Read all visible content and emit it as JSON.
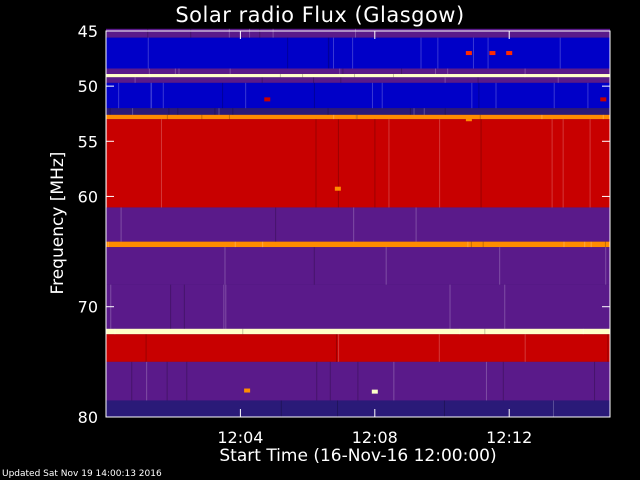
{
  "chart_data": {
    "type": "heatmap",
    "title": "Solar radio Flux (Glasgow)",
    "ylabel": "Frequency [MHz]",
    "xlabel": "Start Time (16-Nov-16 12:00:00)",
    "x_unit": "minutes after 12:00:00",
    "xlim": [
      0,
      15
    ],
    "ylim": [
      45,
      80
    ],
    "y_reversed": true,
    "x_ticks": [
      {
        "value": 4,
        "label": "12:04"
      },
      {
        "value": 8,
        "label": "12:08"
      },
      {
        "value": 12,
        "label": "12:12"
      }
    ],
    "y_ticks": [
      {
        "value": 45,
        "label": "45"
      },
      {
        "value": 50,
        "label": "50"
      },
      {
        "value": 55,
        "label": "55"
      },
      {
        "value": 60,
        "label": "60"
      },
      {
        "value": 70,
        "label": "70"
      },
      {
        "value": 80,
        "label": "80"
      }
    ],
    "colormap": [
      "#0000c8",
      "#2a1a78",
      "#5a1a8a",
      "#c80000",
      "#ff2a00",
      "#ff8c00",
      "#ffffc8"
    ],
    "bands": [
      {
        "from": 44.8,
        "to": 45.6,
        "level": 0.35
      },
      {
        "from": 45.6,
        "to": 48.4,
        "level": 0.05
      },
      {
        "from": 48.4,
        "to": 48.9,
        "level": 0.3
      },
      {
        "from": 48.9,
        "to": 49.2,
        "level": 1.0
      },
      {
        "from": 49.2,
        "to": 49.7,
        "level": 0.3
      },
      {
        "from": 49.7,
        "to": 52.0,
        "level": 0.0
      },
      {
        "from": 52.0,
        "to": 52.6,
        "level": 0.2
      },
      {
        "from": 52.6,
        "to": 53.0,
        "level": 0.85
      },
      {
        "from": 53.0,
        "to": 61.0,
        "level": 0.55
      },
      {
        "from": 61.0,
        "to": 64.1,
        "level": 0.4
      },
      {
        "from": 64.1,
        "to": 64.6,
        "level": 0.8
      },
      {
        "from": 64.6,
        "to": 68.0,
        "level": 0.3
      },
      {
        "from": 68.0,
        "to": 72.0,
        "level": 0.35
      },
      {
        "from": 72.0,
        "to": 72.5,
        "level": 0.95
      },
      {
        "from": 72.5,
        "to": 75.0,
        "level": 0.45
      },
      {
        "from": 75.0,
        "to": 78.5,
        "level": 0.4
      },
      {
        "from": 78.5,
        "to": 80.0,
        "level": 0.2
      }
    ],
    "bursts": [
      {
        "t": 8.0,
        "f": 77.7,
        "level": 1.0
      },
      {
        "t": 6.9,
        "f": 59.3,
        "level": 0.8
      },
      {
        "t": 4.2,
        "f": 77.6,
        "level": 0.8
      },
      {
        "t": 4.8,
        "f": 51.2,
        "level": 0.55
      },
      {
        "t": 14.8,
        "f": 51.2,
        "level": 0.55
      },
      {
        "t": 10.8,
        "f": 53.0,
        "level": 0.75
      },
      {
        "t": 10.8,
        "f": 47.0,
        "level": 0.65
      },
      {
        "t": 11.5,
        "f": 47.0,
        "level": 0.65
      },
      {
        "t": 12.0,
        "f": 47.0,
        "level": 0.65
      }
    ]
  },
  "footer": {
    "updated": "Updated Sat Nov 19 14:00:13 2016"
  }
}
